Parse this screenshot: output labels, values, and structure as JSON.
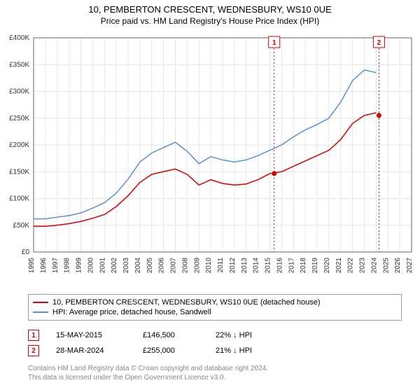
{
  "title": {
    "main": "10, PEMBERTON CRESCENT, WEDNESBURY, WS10 0UE",
    "sub": "Price paid vs. HM Land Registry's House Price Index (HPI)"
  },
  "chart": {
    "type": "line",
    "background_color": "#ffffff",
    "plot_background": "#ffffff",
    "grid_color": "#e6e6e6",
    "axis_color": "#666666",
    "tick_font_size": 10,
    "x": {
      "min": 1995,
      "max": 2027,
      "tick_step": 1,
      "labels": [
        "1995",
        "1996",
        "1997",
        "1998",
        "1999",
        "2000",
        "2001",
        "2002",
        "2003",
        "2004",
        "2005",
        "2006",
        "2007",
        "2008",
        "2009",
        "2010",
        "2011",
        "2012",
        "2013",
        "2014",
        "2015",
        "2016",
        "2017",
        "2018",
        "2019",
        "2020",
        "2021",
        "2022",
        "2023",
        "2024",
        "2025",
        "2026",
        "2027"
      ]
    },
    "y": {
      "min": 0,
      "max": 400000,
      "tick_step": 50000,
      "labels": [
        "£0",
        "£50K",
        "£100K",
        "£150K",
        "£200K",
        "£250K",
        "£300K",
        "£350K",
        "£400K"
      ],
      "label_font_size": 10
    },
    "series": [
      {
        "name": "price_paid",
        "label": "10, PEMBERTON CRESCENT, WEDNESBURY, WS10 0UE (detached house)",
        "color": "#d40000",
        "line_width": 1.5,
        "values": [
          [
            1995,
            48000
          ],
          [
            1996,
            48000
          ],
          [
            1997,
            50000
          ],
          [
            1998,
            53000
          ],
          [
            1999,
            57000
          ],
          [
            2000,
            63000
          ],
          [
            2001,
            70000
          ],
          [
            2002,
            85000
          ],
          [
            2003,
            105000
          ],
          [
            2004,
            130000
          ],
          [
            2005,
            145000
          ],
          [
            2006,
            150000
          ],
          [
            2007,
            155000
          ],
          [
            2008,
            145000
          ],
          [
            2009,
            125000
          ],
          [
            2010,
            135000
          ],
          [
            2011,
            128000
          ],
          [
            2012,
            125000
          ],
          [
            2013,
            127000
          ],
          [
            2014,
            135000
          ],
          [
            2015,
            146500
          ],
          [
            2016,
            150000
          ],
          [
            2017,
            160000
          ],
          [
            2018,
            170000
          ],
          [
            2019,
            180000
          ],
          [
            2020,
            190000
          ],
          [
            2021,
            210000
          ],
          [
            2022,
            240000
          ],
          [
            2023,
            255000
          ],
          [
            2024,
            260000
          ]
        ]
      },
      {
        "name": "hpi",
        "label": "HPI: Average price, detached house, Sandwell",
        "color": "#5b8fd6",
        "line_width": 1.5,
        "values": [
          [
            1995,
            62000
          ],
          [
            1996,
            62000
          ],
          [
            1997,
            65000
          ],
          [
            1998,
            68000
          ],
          [
            1999,
            73000
          ],
          [
            2000,
            82000
          ],
          [
            2001,
            92000
          ],
          [
            2002,
            110000
          ],
          [
            2003,
            136000
          ],
          [
            2004,
            168000
          ],
          [
            2005,
            185000
          ],
          [
            2006,
            195000
          ],
          [
            2007,
            205000
          ],
          [
            2008,
            188000
          ],
          [
            2009,
            165000
          ],
          [
            2010,
            178000
          ],
          [
            2011,
            172000
          ],
          [
            2012,
            168000
          ],
          [
            2013,
            172000
          ],
          [
            2014,
            180000
          ],
          [
            2015,
            190000
          ],
          [
            2016,
            200000
          ],
          [
            2017,
            215000
          ],
          [
            2018,
            228000
          ],
          [
            2019,
            238000
          ],
          [
            2020,
            250000
          ],
          [
            2021,
            280000
          ],
          [
            2022,
            320000
          ],
          [
            2023,
            340000
          ],
          [
            2024,
            335000
          ]
        ]
      }
    ],
    "markers": [
      {
        "id": "1",
        "x": 2015.37,
        "color": "#d40000",
        "date": "15-MAY-2015",
        "price": "£146,500",
        "pct": "22%",
        "arrow": "↓",
        "vs": "HPI",
        "dot_y": 146500
      },
      {
        "id": "2",
        "x": 2024.24,
        "color": "#d40000",
        "date": "28-MAR-2024",
        "price": "£255,000",
        "pct": "21%",
        "arrow": "↓",
        "vs": "HPI",
        "dot_y": 255000
      }
    ]
  },
  "license": {
    "line1": "Contains HM Land Registry data © Crown copyright and database right 2024.",
    "line2": "This data is licensed under the Open Government Licence v3.0."
  }
}
